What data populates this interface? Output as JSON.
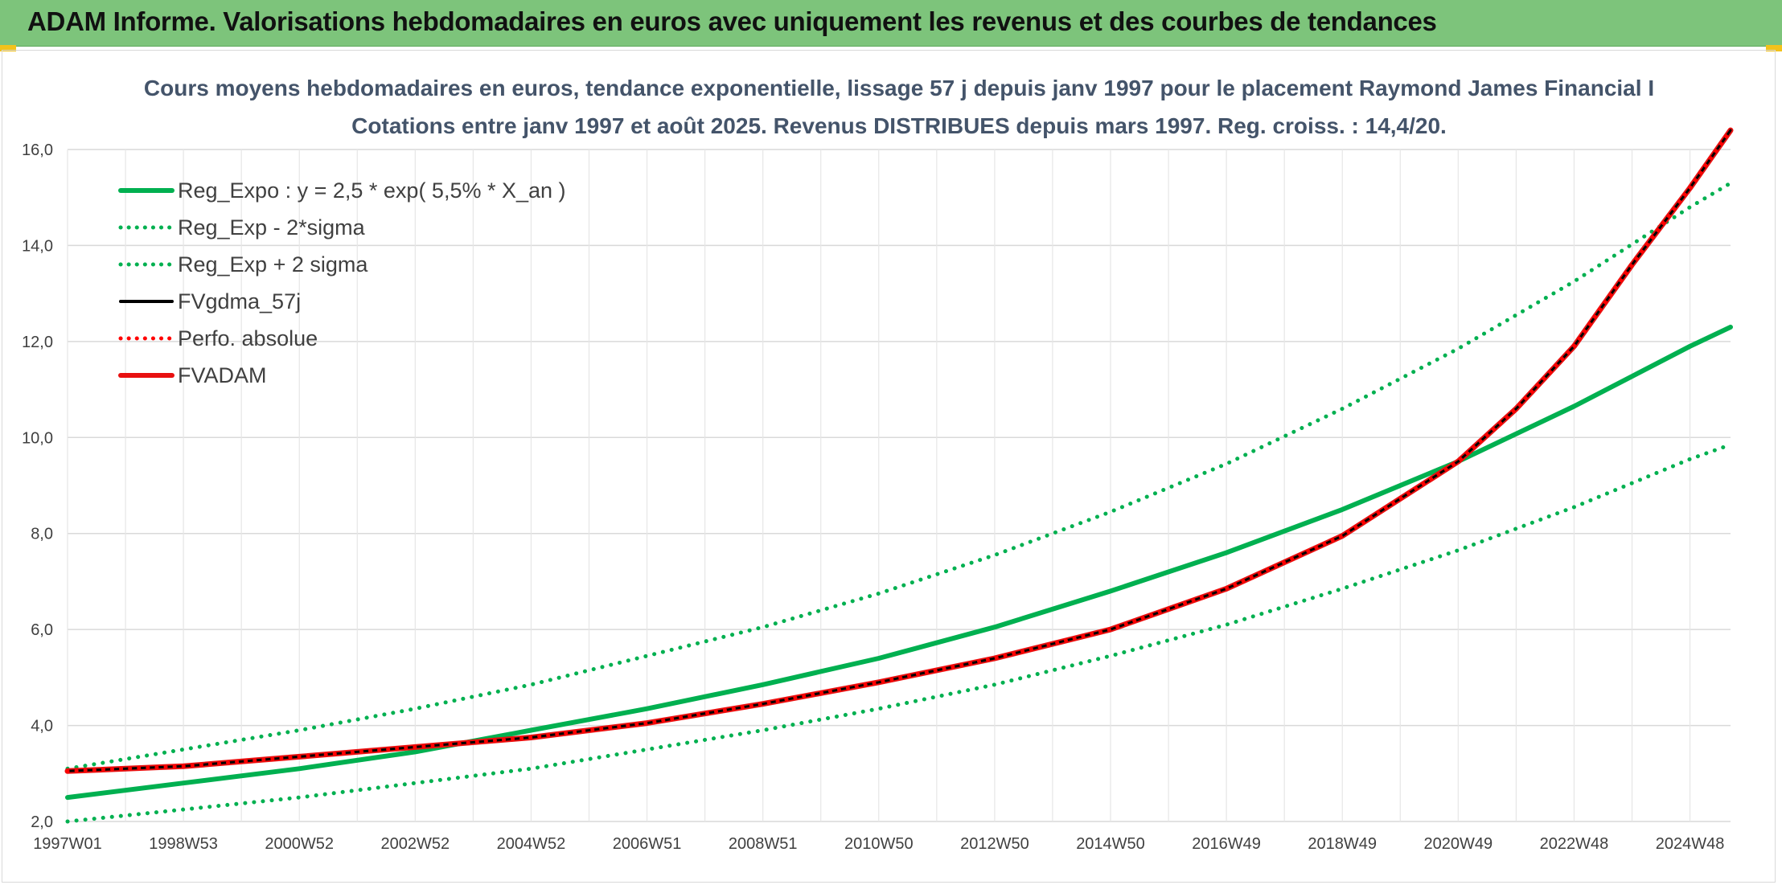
{
  "banner": {
    "title": "ADAM Informe. Valorisations hebdomadaires en euros avec uniquement les revenus et des courbes de tendances",
    "color": "#7dc47b"
  },
  "chart_data": {
    "type": "line",
    "title_line1": "Cours moyens hebdomadaires en euros, tendance exponentielle, lissage 57 j depuis janv 1997 pour le placement Raymond James Financial I",
    "title_line2": "Cotations entre janv 1997 et août 2025. Revenus DISTRIBUES depuis mars 1997. Reg. croiss. : 14,4/20.",
    "xlabel": "",
    "ylabel": "",
    "x_tick_labels": [
      "1997W01",
      "1998W53",
      "2000W52",
      "2002W52",
      "2004W52",
      "2006W51",
      "2008W51",
      "2010W50",
      "2012W50",
      "2014W50",
      "2016W49",
      "2018W49",
      "2020W49",
      "2022W48",
      "2024W48"
    ],
    "x_tick_years": [
      1997.0,
      1999.0,
      2001.0,
      2003.0,
      2005.0,
      2007.0,
      2009.0,
      2011.0,
      2013.0,
      2015.0,
      2017.0,
      2019.0,
      2021.0,
      2023.0,
      2025.0
    ],
    "xlim": [
      1997.0,
      2025.7
    ],
    "ylim": [
      2.0,
      16.0
    ],
    "y_ticks": [
      2.0,
      4.0,
      6.0,
      8.0,
      10.0,
      12.0,
      14.0,
      16.0
    ],
    "y_tick_labels": [
      "2,0",
      "4,0",
      "6,0",
      "8,0",
      "10,0",
      "12,0",
      "14,0",
      "16,0"
    ],
    "grid": true,
    "legend_position": "top-left",
    "series": [
      {
        "name": "Reg_Expo : y = 2,5 * exp( 5,5% *  X_an )",
        "color": "#00b050",
        "style": "solid",
        "x": [
          1997,
          1999,
          2001,
          2003,
          2005,
          2007,
          2009,
          2011,
          2013,
          2015,
          2017,
          2019,
          2021,
          2023,
          2025,
          2025.7
        ],
        "y": [
          2.5,
          2.8,
          3.1,
          3.45,
          3.9,
          4.35,
          4.85,
          5.4,
          6.05,
          6.8,
          7.6,
          8.5,
          9.5,
          10.65,
          11.9,
          12.3
        ]
      },
      {
        "name": "Reg_Exp - 2*sigma",
        "color": "#00b050",
        "style": "dotted",
        "x": [
          1997,
          1999,
          2001,
          2003,
          2005,
          2007,
          2009,
          2011,
          2013,
          2015,
          2017,
          2019,
          2021,
          2023,
          2025,
          2025.7
        ],
        "y": [
          2.0,
          2.25,
          2.5,
          2.8,
          3.1,
          3.5,
          3.9,
          4.35,
          4.85,
          5.45,
          6.1,
          6.85,
          7.65,
          8.55,
          9.55,
          9.85
        ]
      },
      {
        "name": "Reg_Exp + 2 sigma",
        "color": "#00b050",
        "style": "dotted",
        "x": [
          1997,
          1999,
          2001,
          2003,
          2005,
          2007,
          2009,
          2011,
          2013,
          2015,
          2017,
          2019,
          2021,
          2023,
          2025,
          2025.7
        ],
        "y": [
          3.1,
          3.5,
          3.9,
          4.35,
          4.85,
          5.45,
          6.05,
          6.75,
          7.55,
          8.45,
          9.45,
          10.6,
          11.85,
          13.25,
          14.8,
          15.3
        ]
      },
      {
        "name": "FVgdma_57j",
        "color": "#000000",
        "style": "solid",
        "x": [
          1997,
          1999,
          2001,
          2003,
          2005,
          2007,
          2009,
          2011,
          2013,
          2015,
          2017,
          2019,
          2021,
          2022,
          2023,
          2024,
          2025,
          2025.7
        ],
        "y": [
          3.05,
          3.15,
          3.35,
          3.55,
          3.75,
          4.05,
          4.45,
          4.9,
          5.4,
          6.0,
          6.85,
          7.95,
          9.5,
          10.6,
          11.9,
          13.6,
          15.2,
          16.4
        ]
      },
      {
        "name": "Perfo. absolue",
        "color": "#ff0000",
        "style": "dotted",
        "x": [
          1997,
          1999,
          2001,
          2003,
          2005,
          2007,
          2009,
          2011,
          2013,
          2015,
          2017,
          2019,
          2021,
          2022,
          2023,
          2024,
          2025,
          2025.7
        ],
        "y": [
          3.05,
          3.15,
          3.35,
          3.55,
          3.75,
          4.05,
          4.45,
          4.9,
          5.4,
          6.0,
          6.85,
          7.95,
          9.5,
          10.6,
          11.9,
          13.6,
          15.2,
          16.4
        ]
      },
      {
        "name": "FVADAM",
        "color": "#e81010",
        "style": "solid",
        "x": [
          1997,
          1999,
          2001,
          2003,
          2005,
          2007,
          2009,
          2011,
          2013,
          2015,
          2017,
          2019,
          2021,
          2022,
          2023,
          2024,
          2025,
          2025.7
        ],
        "y": [
          3.05,
          3.15,
          3.35,
          3.55,
          3.75,
          4.05,
          4.45,
          4.9,
          5.4,
          6.0,
          6.85,
          7.95,
          9.5,
          10.6,
          11.9,
          13.6,
          15.2,
          16.4
        ]
      }
    ]
  }
}
